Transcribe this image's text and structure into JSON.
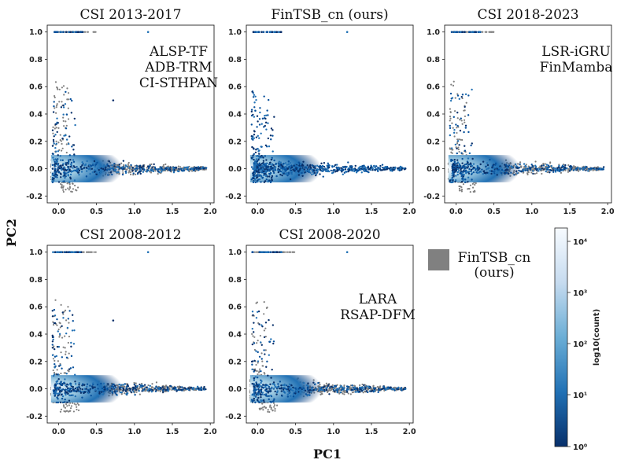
{
  "chart_data": [
    {
      "type": "scatter",
      "title": "CSI 2013-2017",
      "annotation": [
        "ALSP-TF",
        "ADB-TRM",
        "CI-STHPAN"
      ],
      "xlim": [
        -0.15,
        2.05
      ],
      "ylim": [
        -0.25,
        1.05
      ],
      "xticks": [
        "0.0",
        "0.5",
        "1.0",
        "1.5",
        "2.0"
      ],
      "yticks": [
        "1.0",
        "0.8",
        "0.6",
        "0.4",
        "0.2",
        "0.0",
        "-0.2"
      ],
      "series": [
        {
          "name": "FinTSB_cn (ours)",
          "color": "#808080",
          "kind": "points"
        },
        {
          "name": "density",
          "colormap": "Blues_r",
          "kind": "hexbin"
        }
      ]
    },
    {
      "type": "scatter",
      "title": "FinTSB_cn (ours)",
      "annotation": [],
      "xlim": [
        -0.15,
        2.05
      ],
      "ylim": [
        -0.25,
        1.05
      ],
      "xticks": [
        "0.0",
        "0.5",
        "1.0",
        "1.5",
        "2.0"
      ],
      "yticks": [
        "1.0",
        "0.8",
        "0.6",
        "0.4",
        "0.2",
        "0.0",
        "-0.2"
      ],
      "series": [
        {
          "name": "density",
          "colormap": "Blues_r",
          "kind": "hexbin"
        }
      ]
    },
    {
      "type": "scatter",
      "title": "CSI 2018-2023",
      "annotation": [
        "LSR-iGRU",
        "FinMamba"
      ],
      "xlim": [
        -0.15,
        2.05
      ],
      "ylim": [
        -0.25,
        1.05
      ],
      "xticks": [
        "0.0",
        "0.5",
        "1.0",
        "1.5",
        "2.0"
      ],
      "yticks": [
        "1.0",
        "0.8",
        "0.6",
        "0.4",
        "0.2",
        "0.0",
        "-0.2"
      ],
      "series": [
        {
          "name": "FinTSB_cn (ours)",
          "color": "#808080",
          "kind": "points"
        },
        {
          "name": "density",
          "colormap": "Blues_r",
          "kind": "hexbin"
        }
      ]
    },
    {
      "type": "scatter",
      "title": "CSI 2008-2012",
      "annotation": [],
      "xlim": [
        -0.15,
        2.05
      ],
      "ylim": [
        -0.25,
        1.05
      ],
      "xticks": [
        "0.0",
        "0.5",
        "1.0",
        "1.5",
        "2.0"
      ],
      "yticks": [
        "1.0",
        "0.8",
        "0.6",
        "0.4",
        "0.2",
        "0.0",
        "-0.2"
      ],
      "series": [
        {
          "name": "FinTSB_cn (ours)",
          "color": "#808080",
          "kind": "points"
        },
        {
          "name": "density",
          "colormap": "Blues_r",
          "kind": "hexbin"
        }
      ]
    },
    {
      "type": "scatter",
      "title": "CSI 2008-2020",
      "annotation": [
        "LARA",
        "RSAP-DFM"
      ],
      "xlim": [
        -0.15,
        2.05
      ],
      "ylim": [
        -0.25,
        1.05
      ],
      "xticks": [
        "0.0",
        "0.5",
        "1.0",
        "1.5",
        "2.0"
      ],
      "yticks": [
        "1.0",
        "0.8",
        "0.6",
        "0.4",
        "0.2",
        "0.0",
        "-0.2"
      ],
      "series": [
        {
          "name": "FinTSB_cn (ours)",
          "color": "#808080",
          "kind": "points"
        },
        {
          "name": "density",
          "colormap": "Blues_r",
          "kind": "hexbin"
        }
      ]
    }
  ],
  "shared": {
    "xlabel": "PC1",
    "ylabel": "PC2",
    "legend": {
      "label_line1": "FinTSB_cn",
      "label_line2": "(ours)",
      "color": "#808080"
    },
    "colorbar": {
      "label": "log10(count)",
      "tick_labels": [
        "10⁴",
        "10³",
        "10²",
        "10¹",
        "10⁰"
      ],
      "colors": [
        "#f7fbff",
        "#c6dbef",
        "#6baed6",
        "#2171b5",
        "#08306b"
      ]
    }
  }
}
